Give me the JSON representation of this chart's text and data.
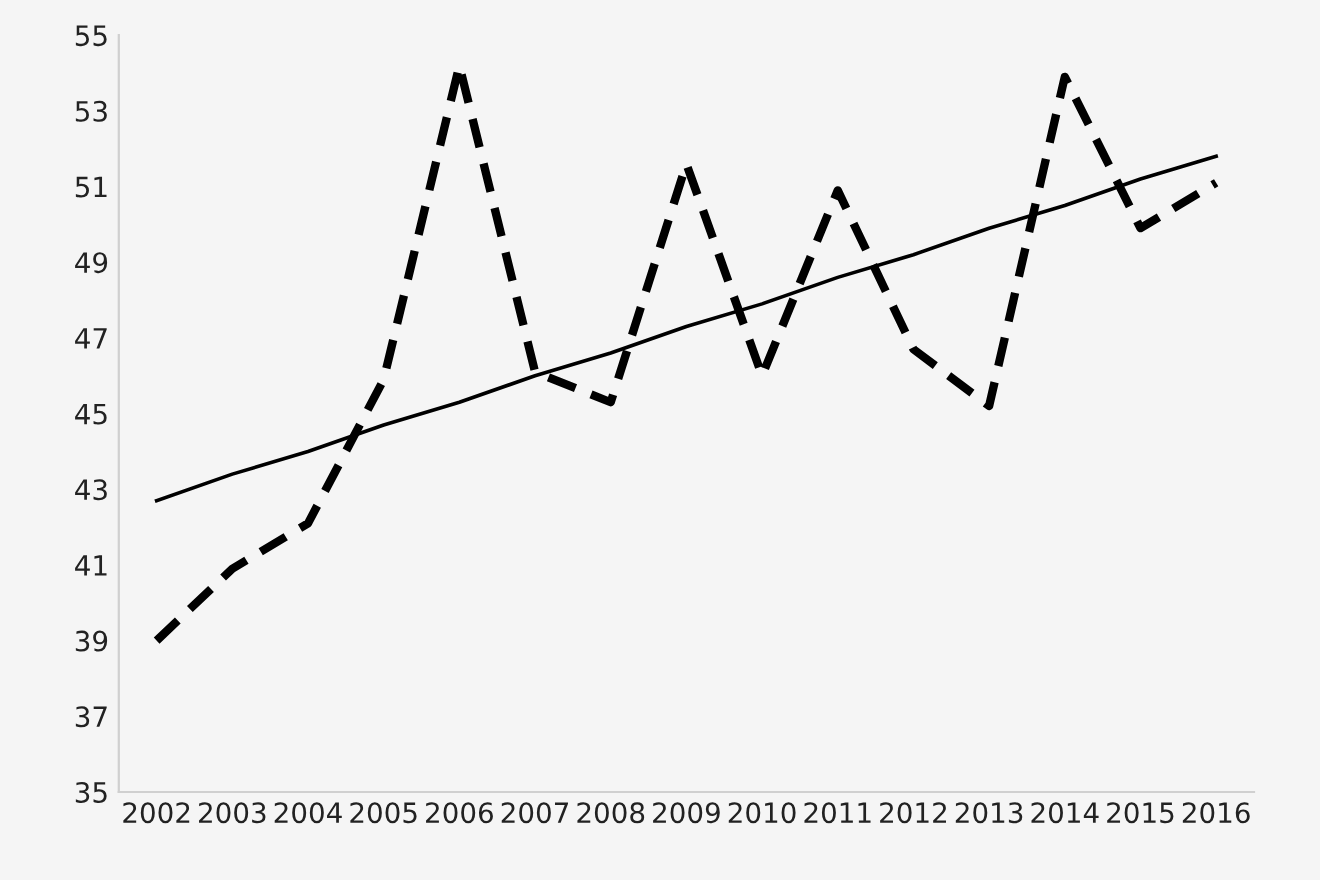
{
  "chart_data": {
    "type": "line",
    "categories": [
      "2002",
      "2003",
      "2004",
      "2005",
      "2006",
      "2007",
      "2008",
      "2009",
      "2010",
      "2011",
      "2012",
      "2013",
      "2014",
      "2015",
      "2016"
    ],
    "series": [
      {
        "color": "#000000",
        "line_style": "dashed",
        "values": [
          39.0,
          40.9,
          42.1,
          45.9,
          54.2,
          46.1,
          45.3,
          51.6,
          46.0,
          50.9,
          46.7,
          45.2,
          53.9,
          49.9,
          51.1
        ]
      },
      {
        "type": "line",
        "color": "#000000",
        "line_style": "solid",
        "values": [
          42.7,
          43.4,
          44.0,
          44.7,
          45.3,
          46.0,
          46.6,
          47.3,
          47.9,
          48.6,
          49.2,
          49.9,
          50.5,
          51.2,
          51.8
        ]
      }
    ],
    "ylim": [
      35,
      55
    ],
    "yticks": [
      35,
      37,
      39,
      41,
      43,
      45,
      47,
      49,
      51,
      53,
      55
    ],
    "grid": false,
    "legend": false
  }
}
